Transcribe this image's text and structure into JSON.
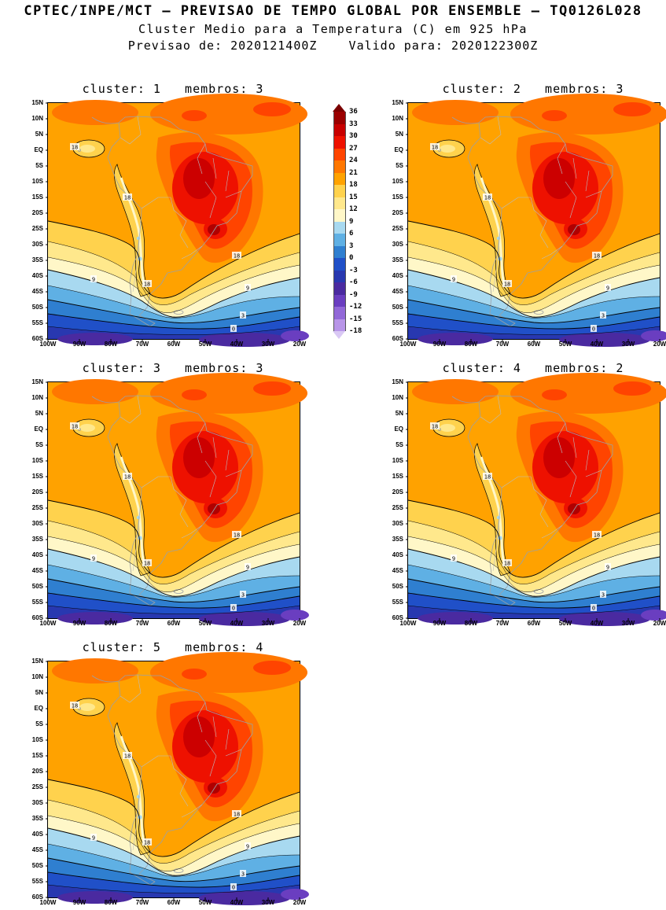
{
  "header": {
    "line1": "CPTEC/INPE/MCT — PREVISAO DE TEMPO GLOBAL POR ENSEMBLE — TQ0126L028",
    "line2": "Cluster Medio para a Temperatura (C) em 925 hPa",
    "line3": "Previsao de: 2020121400Z    Valido para: 2020122300Z"
  },
  "panels": [
    {
      "cluster": "1",
      "membros": "3",
      "title": "cluster: 1   membros: 3"
    },
    {
      "cluster": "2",
      "membros": "3",
      "title": "cluster: 2   membros: 3"
    },
    {
      "cluster": "3",
      "membros": "3",
      "title": "cluster: 3   membros: 3"
    },
    {
      "cluster": "4",
      "membros": "2",
      "title": "cluster: 4   membros: 2"
    },
    {
      "cluster": "5",
      "membros": "4",
      "title": "cluster: 5   membros: 4"
    }
  ],
  "axes": {
    "lat_ticks": [
      "15N",
      "10N",
      "5N",
      "EQ",
      "5S",
      "10S",
      "15S",
      "20S",
      "25S",
      "30S",
      "35S",
      "40S",
      "45S",
      "50S",
      "55S",
      "60S"
    ],
    "lon_ticks": [
      "100W",
      "90W",
      "80W",
      "70W",
      "60W",
      "50W",
      "40W",
      "30W",
      "20W"
    ]
  },
  "colorbar": {
    "values": [
      36,
      33,
      30,
      27,
      24,
      21,
      18,
      15,
      12,
      9,
      6,
      3,
      0,
      -3,
      -6,
      -9,
      -12,
      -15,
      -18
    ],
    "segment_colors": [
      "#9b0000",
      "#c80000",
      "#ee1100",
      "#ff4400",
      "#ff7700",
      "#ffa200",
      "#ffd24d",
      "#ffe88c",
      "#fff7c8",
      "#a8d9f0",
      "#5fb0e4",
      "#2f7fd0",
      "#2050c8",
      "#2838b0",
      "#4a2aa0",
      "#6a3ec0",
      "#9268d8",
      "#b895e8"
    ],
    "arrow_top_color": "#7a0000",
    "arrow_bottom_color": "#d9c8f4"
  },
  "contour_labels": [
    "18",
    "18",
    "18",
    "18",
    "9",
    "9",
    "3",
    "0"
  ],
  "chart_data": {
    "type": "heatmap",
    "chart_kind": "filled contour maps (5 ensemble cluster panels over South America)",
    "organization": "CPTEC/INPE/MCT",
    "model": "PREVISAO DE TEMPO GLOBAL POR ENSEMBLE — TQ0126L028",
    "title": "Cluster Medio para a Temperatura (C) em 925 hPa",
    "variable": "Temperatura",
    "units": "C",
    "level_hPa": 925,
    "init_time": "2020121400Z",
    "valid_time": "2020122300Z",
    "lon_ticks": [
      "100W",
      "90W",
      "80W",
      "70W",
      "60W",
      "50W",
      "40W",
      "30W",
      "20W"
    ],
    "lat_ticks": [
      "15N",
      "10N",
      "5N",
      "EQ",
      "5S",
      "10S",
      "15S",
      "20S",
      "25S",
      "30S",
      "35S",
      "40S",
      "45S",
      "50S",
      "55S",
      "60S"
    ],
    "contour_interval_C": 3,
    "color_scale_C": [
      36,
      33,
      30,
      27,
      24,
      21,
      18,
      15,
      12,
      9,
      6,
      3,
      0,
      -3,
      -6,
      -9,
      -12,
      -15,
      -18
    ],
    "legend_position": "vertical colorbar between cluster 1 and cluster 2 panels",
    "panels": [
      {
        "cluster": 1,
        "membros": 3,
        "labeled_contours_C": [
          18,
          9,
          3,
          0
        ]
      },
      {
        "cluster": 2,
        "membros": 3,
        "labeled_contours_C": [
          18,
          9,
          3,
          0
        ]
      },
      {
        "cluster": 3,
        "membros": 3,
        "labeled_contours_C": [
          18,
          9,
          3,
          0
        ]
      },
      {
        "cluster": 4,
        "membros": 2,
        "labeled_contours_C": [
          18,
          9,
          3,
          0
        ]
      },
      {
        "cluster": 5,
        "membros": 4,
        "labeled_contours_C": [
          18,
          9,
          3,
          0
        ]
      }
    ],
    "description": "Warm air (24-33C, orange/red) over tropical South America with maxima over central Brazil; a cool tongue (~15-18C) along the Andes near 70W; temperature bands cool southward through yellow (9-18C), light/medium blue (0-9C), deep blue (-6-0C) to purple (below -6C) near 60S."
  }
}
